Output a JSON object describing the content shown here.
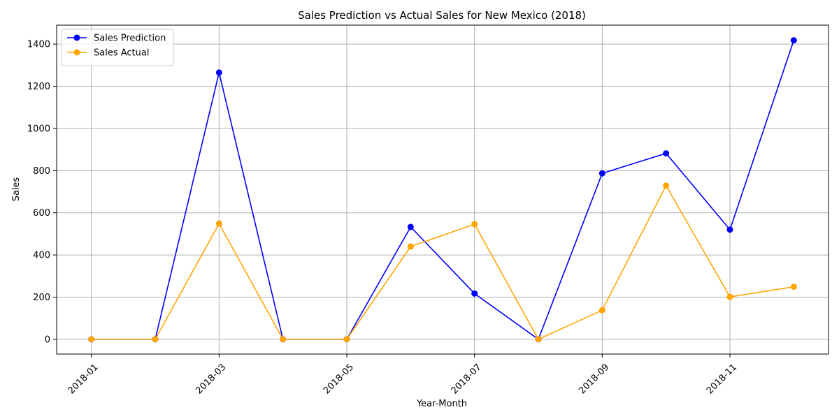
{
  "chart_data": {
    "type": "line",
    "title": "Sales Prediction vs Actual Sales for New Mexico (2018)",
    "xlabel": "Year-Month",
    "ylabel": "Sales",
    "x": [
      "2018-01",
      "2018-02",
      "2018-03",
      "2018-04",
      "2018-05",
      "2018-06",
      "2018-07",
      "2018-08",
      "2018-09",
      "2018-10",
      "2018-11",
      "2018-12"
    ],
    "x_tick_labels": [
      "2018-01",
      "2018-03",
      "2018-05",
      "2018-07",
      "2018-09",
      "2018-11"
    ],
    "y_ticks": [
      0,
      200,
      400,
      600,
      800,
      1000,
      1200,
      1400
    ],
    "ylim": [
      -70,
      1490
    ],
    "grid": true,
    "legend_position": "top-left",
    "series": [
      {
        "name": "Sales Prediction",
        "color": "#0000ff",
        "values": [
          0,
          0,
          1265,
          0,
          0,
          533,
          217,
          0,
          787,
          882,
          520,
          1418
        ]
      },
      {
        "name": "Sales Actual",
        "color": "#ffa500",
        "values": [
          0,
          0,
          549,
          0,
          0,
          440,
          546,
          0,
          138,
          729,
          201,
          249
        ]
      }
    ]
  }
}
